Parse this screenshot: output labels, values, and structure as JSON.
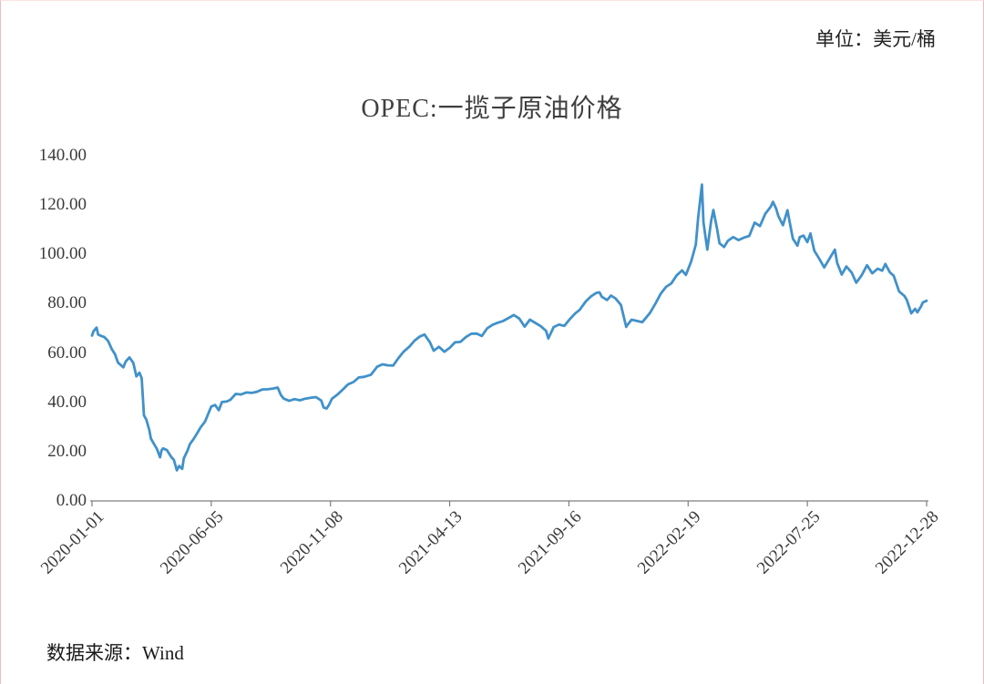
{
  "header": {
    "unit_label": "单位：美元/桶"
  },
  "footer": {
    "source_label": "数据来源：Wind"
  },
  "chart_data": {
    "type": "line",
    "title": "OPEC:一揽子原油价格",
    "ylabel": "",
    "xlabel": "",
    "unit": "美元/桶",
    "source": "Wind",
    "grid": false,
    "legend": "none",
    "ylim": [
      0,
      140
    ],
    "yticks": [
      0,
      20,
      40,
      60,
      80,
      100,
      120,
      140
    ],
    "ytick_labels": [
      "0.00",
      "20.00",
      "40.00",
      "60.00",
      "80.00",
      "100.00",
      "120.00",
      "140.00"
    ],
    "xtick_labels": [
      "2020-01-01",
      "2020-06-05",
      "2020-11-08",
      "2021-04-13",
      "2021-09-16",
      "2022-02-19",
      "2022-07-25",
      "2022-12-28"
    ],
    "x_range": [
      "2020-01-01",
      "2022-12-28"
    ],
    "series": [
      {
        "name": "OPEC一揽子原油价格",
        "color": "#4191c9",
        "points": [
          [
            "2020-01-01",
            67.1
          ],
          [
            "2020-01-03",
            68.9
          ],
          [
            "2020-01-07",
            70.3
          ],
          [
            "2020-01-09",
            67.5
          ],
          [
            "2020-01-14",
            66.8
          ],
          [
            "2020-01-17",
            66.5
          ],
          [
            "2020-01-22",
            64.9
          ],
          [
            "2020-01-27",
            61.5
          ],
          [
            "2020-01-31",
            59.5
          ],
          [
            "2020-02-04",
            56.1
          ],
          [
            "2020-02-07",
            55.3
          ],
          [
            "2020-02-11",
            54.2
          ],
          [
            "2020-02-14",
            56.5
          ],
          [
            "2020-02-19",
            58.2
          ],
          [
            "2020-02-24",
            56.0
          ],
          [
            "2020-02-28",
            50.5
          ],
          [
            "2020-03-03",
            52.0
          ],
          [
            "2020-03-06",
            49.8
          ],
          [
            "2020-03-09",
            34.7
          ],
          [
            "2020-03-12",
            33.0
          ],
          [
            "2020-03-16",
            28.7
          ],
          [
            "2020-03-18",
            25.3
          ],
          [
            "2020-03-23",
            22.6
          ],
          [
            "2020-03-26",
            21.0
          ],
          [
            "2020-03-30",
            17.7
          ],
          [
            "2020-04-01",
            20.5
          ],
          [
            "2020-04-03",
            21.3
          ],
          [
            "2020-04-08",
            20.6
          ],
          [
            "2020-04-14",
            17.7
          ],
          [
            "2020-04-17",
            16.7
          ],
          [
            "2020-04-21",
            12.4
          ],
          [
            "2020-04-24",
            14.2
          ],
          [
            "2020-04-28",
            13.0
          ],
          [
            "2020-04-30",
            17.2
          ],
          [
            "2020-05-05",
            20.5
          ],
          [
            "2020-05-08",
            23.0
          ],
          [
            "2020-05-13",
            25.2
          ],
          [
            "2020-05-18",
            27.7
          ],
          [
            "2020-05-22",
            29.8
          ],
          [
            "2020-05-28",
            32.2
          ],
          [
            "2020-06-02",
            36.0
          ],
          [
            "2020-06-05",
            38.3
          ],
          [
            "2020-06-10",
            38.9
          ],
          [
            "2020-06-15",
            36.8
          ],
          [
            "2020-06-19",
            40.1
          ],
          [
            "2020-06-25",
            40.3
          ],
          [
            "2020-06-30",
            41.0
          ],
          [
            "2020-07-07",
            43.4
          ],
          [
            "2020-07-14",
            43.2
          ],
          [
            "2020-07-21",
            44.0
          ],
          [
            "2020-07-28",
            43.8
          ],
          [
            "2020-08-04",
            44.3
          ],
          [
            "2020-08-11",
            45.2
          ],
          [
            "2020-08-18",
            45.3
          ],
          [
            "2020-08-25",
            45.6
          ],
          [
            "2020-08-31",
            46.0
          ],
          [
            "2020-09-04",
            43.0
          ],
          [
            "2020-09-08",
            41.5
          ],
          [
            "2020-09-15",
            40.6
          ],
          [
            "2020-09-22",
            41.3
          ],
          [
            "2020-09-29",
            40.8
          ],
          [
            "2020-10-06",
            41.5
          ],
          [
            "2020-10-13",
            41.8
          ],
          [
            "2020-10-20",
            42.1
          ],
          [
            "2020-10-27",
            40.7
          ],
          [
            "2020-10-30",
            37.9
          ],
          [
            "2020-11-03",
            37.5
          ],
          [
            "2020-11-06",
            38.9
          ],
          [
            "2020-11-10",
            41.5
          ],
          [
            "2020-11-17",
            43.1
          ],
          [
            "2020-11-24",
            45.1
          ],
          [
            "2020-12-01",
            47.3
          ],
          [
            "2020-12-08",
            48.2
          ],
          [
            "2020-12-15",
            50.1
          ],
          [
            "2020-12-22",
            50.3
          ],
          [
            "2020-12-31",
            51.2
          ],
          [
            "2021-01-08",
            54.4
          ],
          [
            "2021-01-15",
            55.4
          ],
          [
            "2021-01-22",
            55.0
          ],
          [
            "2021-01-29",
            54.9
          ],
          [
            "2021-02-05",
            58.0
          ],
          [
            "2021-02-12",
            60.6
          ],
          [
            "2021-02-19",
            62.5
          ],
          [
            "2021-02-26",
            65.0
          ],
          [
            "2021-03-05",
            66.7
          ],
          [
            "2021-03-11",
            67.5
          ],
          [
            "2021-03-18",
            64.4
          ],
          [
            "2021-03-23",
            60.9
          ],
          [
            "2021-03-30",
            62.5
          ],
          [
            "2021-04-06",
            60.5
          ],
          [
            "2021-04-13",
            62.1
          ],
          [
            "2021-04-20",
            64.3
          ],
          [
            "2021-04-27",
            64.5
          ],
          [
            "2021-05-04",
            66.4
          ],
          [
            "2021-05-11",
            67.8
          ],
          [
            "2021-05-18",
            67.9
          ],
          [
            "2021-05-25",
            66.9
          ],
          [
            "2021-06-01",
            70.0
          ],
          [
            "2021-06-08",
            71.4
          ],
          [
            "2021-06-15",
            72.3
          ],
          [
            "2021-06-22",
            73.0
          ],
          [
            "2021-06-29",
            74.2
          ],
          [
            "2021-07-06",
            75.4
          ],
          [
            "2021-07-13",
            74.0
          ],
          [
            "2021-07-20",
            70.7
          ],
          [
            "2021-07-27",
            73.5
          ],
          [
            "2021-08-03",
            72.2
          ],
          [
            "2021-08-10",
            70.9
          ],
          [
            "2021-08-17",
            69.0
          ],
          [
            "2021-08-20",
            65.9
          ],
          [
            "2021-08-27",
            70.5
          ],
          [
            "2021-09-03",
            71.5
          ],
          [
            "2021-09-10",
            71.0
          ],
          [
            "2021-09-16",
            73.3
          ],
          [
            "2021-09-24",
            76.0
          ],
          [
            "2021-09-30",
            77.5
          ],
          [
            "2021-10-08",
            80.9
          ],
          [
            "2021-10-15",
            83.0
          ],
          [
            "2021-10-22",
            84.4
          ],
          [
            "2021-10-26",
            84.6
          ],
          [
            "2021-10-29",
            82.8
          ],
          [
            "2021-11-05",
            81.5
          ],
          [
            "2021-11-10",
            83.3
          ],
          [
            "2021-11-16",
            82.1
          ],
          [
            "2021-11-23",
            79.5
          ],
          [
            "2021-11-30",
            70.6
          ],
          [
            "2021-12-02",
            71.5
          ],
          [
            "2021-12-07",
            73.5
          ],
          [
            "2021-12-14",
            73.0
          ],
          [
            "2021-12-21",
            72.5
          ],
          [
            "2021-12-31",
            76.2
          ],
          [
            "2022-01-07",
            79.9
          ],
          [
            "2022-01-14",
            84.0
          ],
          [
            "2022-01-21",
            86.8
          ],
          [
            "2022-01-28",
            88.2
          ],
          [
            "2022-02-04",
            91.5
          ],
          [
            "2022-02-11",
            93.5
          ],
          [
            "2022-02-16",
            91.7
          ],
          [
            "2022-02-23",
            97.1
          ],
          [
            "2022-03-01",
            104.0
          ],
          [
            "2022-03-04",
            114.6
          ],
          [
            "2022-03-09",
            128.3
          ],
          [
            "2022-03-11",
            113.0
          ],
          [
            "2022-03-16",
            101.9
          ],
          [
            "2022-03-21",
            113.5
          ],
          [
            "2022-03-24",
            118.0
          ],
          [
            "2022-03-29",
            110.0
          ],
          [
            "2022-04-01",
            104.5
          ],
          [
            "2022-04-07",
            103.0
          ],
          [
            "2022-04-12",
            105.5
          ],
          [
            "2022-04-19",
            107.0
          ],
          [
            "2022-04-26",
            105.8
          ],
          [
            "2022-05-03",
            106.8
          ],
          [
            "2022-05-10",
            107.5
          ],
          [
            "2022-05-17",
            112.9
          ],
          [
            "2022-05-24",
            111.5
          ],
          [
            "2022-05-31",
            116.5
          ],
          [
            "2022-06-07",
            119.3
          ],
          [
            "2022-06-10",
            121.3
          ],
          [
            "2022-06-14",
            118.6
          ],
          [
            "2022-06-17",
            115.5
          ],
          [
            "2022-06-23",
            111.8
          ],
          [
            "2022-06-29",
            117.9
          ],
          [
            "2022-07-01",
            114.5
          ],
          [
            "2022-07-06",
            106.4
          ],
          [
            "2022-07-12",
            103.5
          ],
          [
            "2022-07-15",
            107.0
          ],
          [
            "2022-07-20",
            107.6
          ],
          [
            "2022-07-25",
            105.0
          ],
          [
            "2022-07-29",
            108.5
          ],
          [
            "2022-08-03",
            101.5
          ],
          [
            "2022-08-09",
            98.5
          ],
          [
            "2022-08-16",
            94.7
          ],
          [
            "2022-08-23",
            98.3
          ],
          [
            "2022-08-30",
            101.9
          ],
          [
            "2022-09-02",
            96.5
          ],
          [
            "2022-09-08",
            91.8
          ],
          [
            "2022-09-14",
            95.1
          ],
          [
            "2022-09-21",
            92.6
          ],
          [
            "2022-09-27",
            88.5
          ],
          [
            "2022-10-04",
            91.5
          ],
          [
            "2022-10-11",
            95.6
          ],
          [
            "2022-10-18",
            92.3
          ],
          [
            "2022-10-25",
            94.2
          ],
          [
            "2022-10-31",
            93.4
          ],
          [
            "2022-11-04",
            96.1
          ],
          [
            "2022-11-10",
            92.7
          ],
          [
            "2022-11-15",
            91.3
          ],
          [
            "2022-11-22",
            85.0
          ],
          [
            "2022-11-29",
            83.1
          ],
          [
            "2022-12-02",
            81.6
          ],
          [
            "2022-12-08",
            76.1
          ],
          [
            "2022-12-13",
            77.9
          ],
          [
            "2022-12-16",
            76.5
          ],
          [
            "2022-12-21",
            79.0
          ],
          [
            "2022-12-23",
            80.5
          ],
          [
            "2022-12-28",
            81.2
          ]
        ]
      }
    ]
  }
}
